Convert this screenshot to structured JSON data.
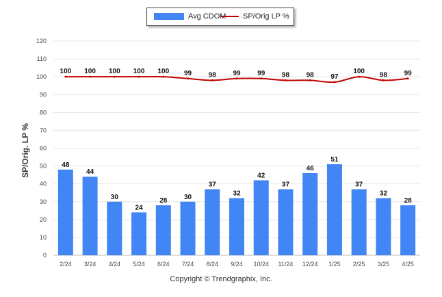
{
  "chart_data": {
    "type": "bar",
    "categories": [
      "2/24",
      "3/24",
      "4/24",
      "5/24",
      "6/24",
      "7/24",
      "8/24",
      "9/24",
      "10/24",
      "11/24",
      "12/24",
      "1/25",
      "2/25",
      "3/25",
      "4/25"
    ],
    "series": [
      {
        "name": "Avg CDOM",
        "type": "bar",
        "color": "#4285f4",
        "values": [
          48,
          44,
          30,
          24,
          28,
          30,
          37,
          32,
          42,
          37,
          46,
          51,
          37,
          32,
          28
        ]
      },
      {
        "name": "SP/Orig LP %",
        "type": "line",
        "color": "#c00000",
        "values": [
          100,
          100,
          100,
          100,
          100,
          99,
          98,
          99,
          99,
          98,
          98,
          97,
          100,
          98,
          99
        ]
      }
    ],
    "ylabel": "SP/Orig. LP %",
    "ylim": [
      0,
      120
    ],
    "yticks": [
      0,
      10,
      20,
      30,
      40,
      50,
      60,
      70,
      80,
      90,
      100,
      110,
      120
    ],
    "grid": true,
    "legend_position": "top-center"
  },
  "legend": {
    "bar_label": "Avg CDOM",
    "line_label": "SP/Orig LP %"
  },
  "footer": {
    "copyright": "Copyright © Trendgraphix, Inc."
  }
}
